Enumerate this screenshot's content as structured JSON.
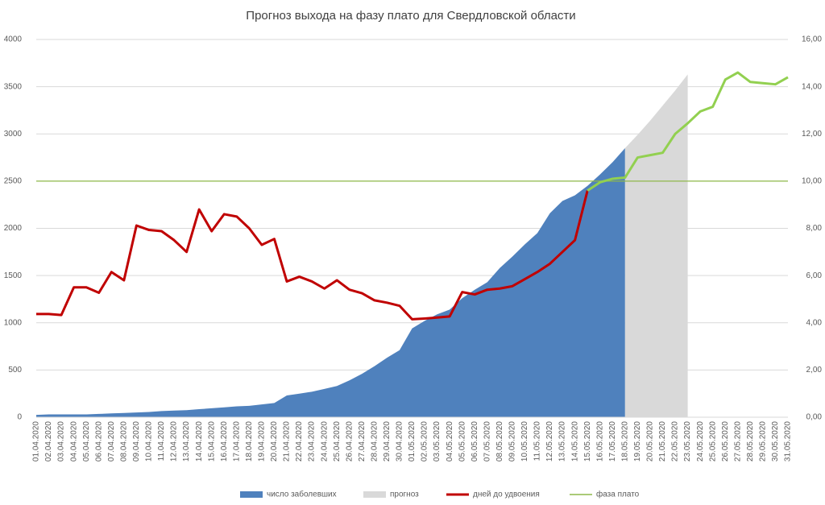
{
  "chart_data": {
    "type": "area-line",
    "title": "Прогноз выхода на фазу плато для Свердловской области",
    "categories": [
      "01.04.2020",
      "02.04.2020",
      "03.04.2020",
      "04.04.2020",
      "05.04.2020",
      "06.04.2020",
      "07.04.2020",
      "08.04.2020",
      "09.04.2020",
      "10.04.2020",
      "11.04.2020",
      "12.04.2020",
      "13.04.2020",
      "14.04.2020",
      "15.04.2020",
      "16.04.2020",
      "17.04.2020",
      "18.04.2020",
      "19.04.2020",
      "20.04.2020",
      "21.04.2020",
      "22.04.2020",
      "23.04.2020",
      "24.04.2020",
      "25.04.2020",
      "26.04.2020",
      "27.04.2020",
      "28.04.2020",
      "29.04.2020",
      "30.04.2020",
      "01.05.2020",
      "02.05.2020",
      "03.05.2020",
      "04.05.2020",
      "05.05.2020",
      "06.05.2020",
      "07.05.2020",
      "08.05.2020",
      "09.05.2020",
      "10.05.2020",
      "11.05.2020",
      "12.05.2020",
      "13.05.2020",
      "14.05.2020",
      "15.05.2020",
      "16.05.2020",
      "17.05.2020",
      "18.05.2020",
      "19.05.2020",
      "20.05.2020",
      "21.05.2020",
      "22.05.2020",
      "23.05.2020",
      "24.05.2020",
      "25.05.2020",
      "26.05.2020",
      "27.05.2020",
      "28.05.2020",
      "29.05.2020",
      "30.05.2020",
      "31.05.2020"
    ],
    "series": [
      {
        "name": "число заболевших",
        "kind": "area",
        "color": "#4f81bd",
        "axis": "y",
        "values": [
          25,
          30,
          30,
          30,
          30,
          35,
          40,
          45,
          50,
          55,
          65,
          70,
          75,
          85,
          95,
          105,
          115,
          120,
          135,
          150,
          230,
          250,
          270,
          300,
          330,
          390,
          460,
          540,
          630,
          710,
          940,
          1020,
          1090,
          1140,
          1260,
          1350,
          1430,
          1580,
          1700,
          1830,
          1950,
          2160,
          2290,
          2350,
          2450,
          2570,
          2700,
          2850,
          null,
          null,
          null,
          null,
          null,
          null,
          null,
          null,
          null,
          null,
          null,
          null,
          null
        ]
      },
      {
        "name": "прогноз",
        "kind": "area",
        "color": "#d9d9d9",
        "axis": "y",
        "values": [
          null,
          null,
          null,
          null,
          null,
          null,
          null,
          null,
          null,
          null,
          null,
          null,
          null,
          null,
          null,
          null,
          null,
          null,
          null,
          null,
          null,
          null,
          null,
          null,
          null,
          null,
          null,
          null,
          null,
          null,
          null,
          null,
          null,
          null,
          null,
          null,
          null,
          null,
          null,
          null,
          null,
          null,
          null,
          null,
          null,
          null,
          null,
          2850,
          2990,
          3140,
          3300,
          3460,
          3630,
          null,
          null,
          null,
          null,
          null,
          null,
          null,
          null
        ]
      },
      {
        "name": "дней до удвоения",
        "kind": "line",
        "color": "#c00000",
        "axis": "y2",
        "values": [
          4.37,
          4.37,
          4.33,
          5.5,
          5.5,
          5.27,
          6.15,
          5.8,
          8.12,
          7.93,
          7.88,
          7.5,
          7.0,
          8.8,
          7.88,
          8.6,
          8.5,
          8.0,
          7.3,
          7.55,
          5.75,
          5.95,
          5.75,
          5.45,
          5.8,
          5.4,
          5.25,
          4.95,
          4.85,
          4.72,
          4.15,
          4.18,
          4.22,
          4.27,
          5.3,
          5.2,
          5.4,
          5.45,
          5.55,
          5.85,
          6.15,
          6.5,
          7.0,
          7.5,
          9.6,
          null,
          null,
          null,
          null,
          null,
          null,
          null,
          null,
          null,
          null,
          null,
          null,
          null,
          null,
          null,
          null
        ]
      },
      {
        "kind": "line",
        "color": "#92d050",
        "axis": "y2",
        "values": [
          null,
          null,
          null,
          null,
          null,
          null,
          null,
          null,
          null,
          null,
          null,
          null,
          null,
          null,
          null,
          null,
          null,
          null,
          null,
          null,
          null,
          null,
          null,
          null,
          null,
          null,
          null,
          null,
          null,
          null,
          null,
          null,
          null,
          null,
          null,
          null,
          null,
          null,
          null,
          null,
          null,
          null,
          null,
          null,
          9.6,
          9.95,
          10.1,
          10.15,
          11.0,
          11.1,
          11.2,
          12.0,
          12.45,
          12.95,
          13.15,
          14.3,
          14.6,
          14.2,
          14.15,
          14.1,
          14.4
        ]
      },
      {
        "name": "фаза плато",
        "kind": "hline",
        "color": "#8fb84a",
        "axis": "y2",
        "value": 10
      }
    ],
    "ylim": [
      0,
      4000
    ],
    "yticks": [
      0,
      500,
      1000,
      1500,
      2000,
      2500,
      3000,
      3500,
      4000
    ],
    "y2lim": [
      0,
      16
    ],
    "y2ticks": [
      {
        "value": 0,
        "label": "0,00"
      },
      {
        "value": 2,
        "label": "2,00"
      },
      {
        "value": 4,
        "label": "4,00"
      },
      {
        "value": 6,
        "label": "6,00"
      },
      {
        "value": 8,
        "label": "8,00"
      },
      {
        "value": 10,
        "label": "10,00"
      },
      {
        "value": 12,
        "label": "12,00"
      },
      {
        "value": 14,
        "label": "14,00"
      },
      {
        "value": 16,
        "label": "16,00"
      }
    ],
    "grid": true,
    "legend": "bottom"
  }
}
